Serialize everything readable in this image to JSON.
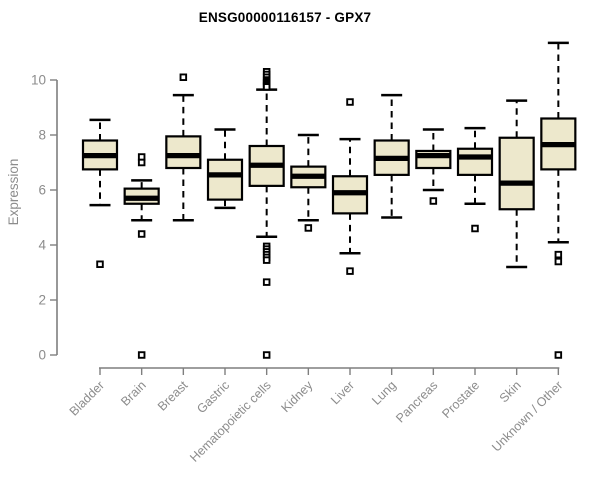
{
  "title": "ENSG00000116157 - GPX7",
  "chart_data": {
    "type": "boxplot",
    "title": "ENSG00000116157 - GPX7",
    "xlabel": "",
    "ylabel": "Expression",
    "ylim": [
      0,
      10
    ],
    "yticks": [
      0,
      2,
      4,
      6,
      8,
      10
    ],
    "grid": false,
    "legend": "none",
    "colors": {
      "box_fill": "#EDE8CC",
      "box_stroke": "#000000",
      "median": "#000000",
      "axis_line": "#7F7F7F",
      "tick_label": "#8C8C8C",
      "title": "#000000",
      "background": "#FFFFFF"
    },
    "categories": [
      "Bladder",
      "Brain",
      "Breast",
      "Gastric",
      "Hematopoietic cells",
      "Kidney",
      "Liver",
      "Lung",
      "Pancreas",
      "Prostate",
      "Skin",
      "Unknown / Other"
    ],
    "series": [
      {
        "category": "Bladder",
        "whisker_low": 5.45,
        "q1": 6.75,
        "median": 7.25,
        "q3": 7.8,
        "whisker_high": 8.55,
        "outliers": [
          3.3
        ]
      },
      {
        "category": "Brain",
        "whisker_low": 4.9,
        "q1": 5.5,
        "median": 5.7,
        "q3": 6.05,
        "whisker_high": 6.35,
        "outliers": [
          7.2,
          7.0,
          4.4,
          0
        ]
      },
      {
        "category": "Breast",
        "whisker_low": 4.9,
        "q1": 6.8,
        "median": 7.25,
        "q3": 7.95,
        "whisker_high": 9.45,
        "outliers": [
          10.1
        ]
      },
      {
        "category": "Gastric",
        "whisker_low": 5.35,
        "q1": 5.65,
        "median": 6.55,
        "q3": 7.1,
        "whisker_high": 8.2,
        "outliers": []
      },
      {
        "category": "Hematopoietic cells",
        "whisker_low": 4.3,
        "q1": 6.15,
        "median": 6.9,
        "q3": 7.6,
        "whisker_high": 9.65,
        "outliers": [
          10.3,
          10.2,
          10.1,
          10.0,
          9.95,
          9.9,
          9.85,
          9.8,
          9.75,
          3.95,
          3.85,
          3.75,
          3.65,
          3.55,
          3.45,
          2.65,
          0
        ]
      },
      {
        "category": "Kidney",
        "whisker_low": 4.9,
        "q1": 6.1,
        "median": 6.5,
        "q3": 6.85,
        "whisker_high": 8.0,
        "outliers": [
          4.62
        ]
      },
      {
        "category": "Liver",
        "whisker_low": 3.7,
        "q1": 5.15,
        "median": 5.9,
        "q3": 6.5,
        "whisker_high": 7.85,
        "outliers": [
          9.2,
          3.05
        ]
      },
      {
        "category": "Lung",
        "whisker_low": 5.0,
        "q1": 6.55,
        "median": 7.15,
        "q3": 7.8,
        "whisker_high": 9.45,
        "outliers": []
      },
      {
        "category": "Pancreas",
        "whisker_low": 6.0,
        "q1": 6.8,
        "median": 7.25,
        "q3": 7.42,
        "whisker_high": 8.2,
        "outliers": [
          5.6
        ]
      },
      {
        "category": "Prostate",
        "whisker_low": 5.5,
        "q1": 6.55,
        "median": 7.2,
        "q3": 7.5,
        "whisker_high": 8.25,
        "outliers": [
          4.6
        ]
      },
      {
        "category": "Skin",
        "whisker_low": 3.2,
        "q1": 5.3,
        "median": 6.25,
        "q3": 7.9,
        "whisker_high": 9.25,
        "outliers": []
      },
      {
        "category": "Unknown / Other",
        "whisker_low": 4.1,
        "q1": 6.75,
        "median": 7.65,
        "q3": 8.6,
        "whisker_high": 11.35,
        "outliers": [
          3.65,
          3.4,
          0
        ]
      }
    ]
  }
}
